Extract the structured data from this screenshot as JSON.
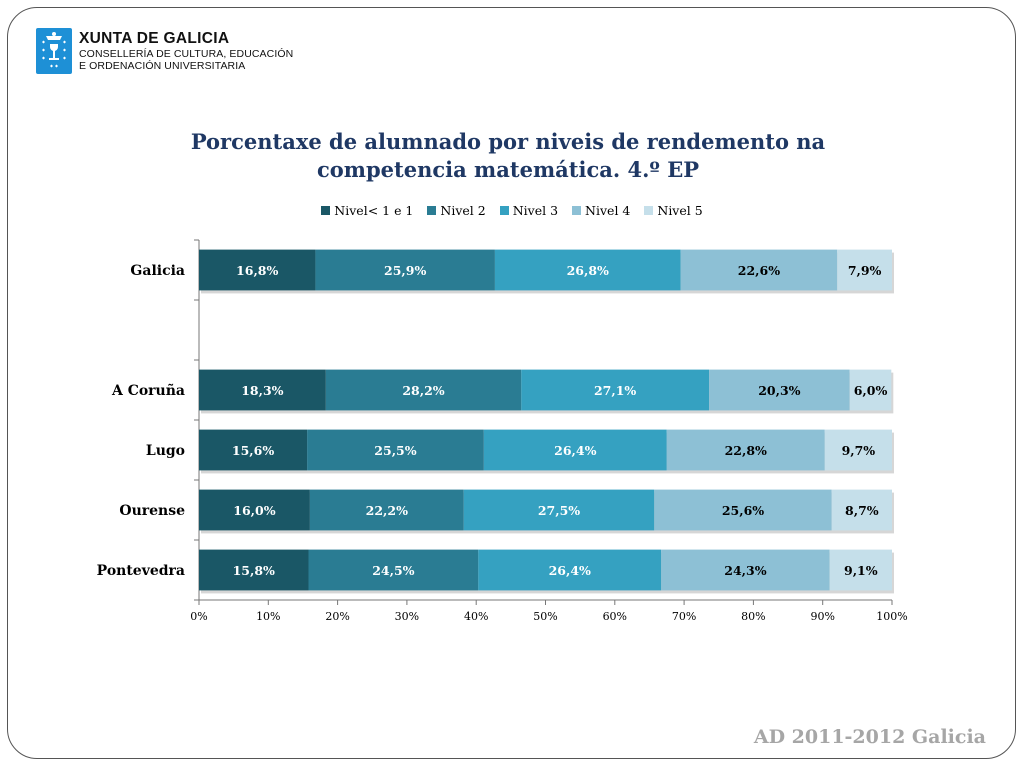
{
  "header": {
    "org_name": "XUNTA DE GALICIA",
    "dept_line1": "CONSELLERÍA DE CULTURA, EDUCACIÓN",
    "dept_line2": "E ORDENACIÓN UNIVERSITARIA",
    "logo_icon": "galicia-coat-of-arms-icon"
  },
  "footer": {
    "text": "AD 2011-2012 Galicia"
  },
  "chart_data": {
    "type": "bar",
    "orientation": "horizontal",
    "stacked": "percent",
    "title": "Porcentaxe de alumnado por niveis de rendemento na competencia matemática. 4.º EP",
    "title_line1": "Porcentaxe de alumnado por niveis de rendemento na",
    "title_line2": "competencia matemática. 4.º EP",
    "xlabel": "",
    "ylabel": "",
    "xlim": [
      0,
      100
    ],
    "x_ticks": [
      "0%",
      "10%",
      "20%",
      "30%",
      "40%",
      "50%",
      "60%",
      "70%",
      "80%",
      "90%",
      "100%"
    ],
    "grid": false,
    "legend_position": "top",
    "categories": [
      "Galicia",
      "",
      "A Coruña",
      "Lugo",
      "Ourense",
      "Pontevedra"
    ],
    "series": [
      {
        "name": "Nivel< 1 e 1",
        "color": "#1a5766",
        "label_color": "#ffffff",
        "values": [
          16.8,
          null,
          18.3,
          15.6,
          16.0,
          15.8
        ],
        "labels": [
          "16,8%",
          "",
          "18,3%",
          "15,6%",
          "16,0%",
          "15,8%"
        ]
      },
      {
        "name": "Nivel 2",
        "color": "#2a7c93",
        "label_color": "#ffffff",
        "values": [
          25.9,
          null,
          28.2,
          25.5,
          22.2,
          24.5
        ],
        "labels": [
          "25,9%",
          "",
          "28,2%",
          "25,5%",
          "22,2%",
          "24,5%"
        ]
      },
      {
        "name": "Nivel 3",
        "color": "#35a1c1",
        "label_color": "#ffffff",
        "values": [
          26.8,
          null,
          27.1,
          26.4,
          27.5,
          26.4
        ],
        "labels": [
          "26,8%",
          "",
          "27,1%",
          "26,4%",
          "27,5%",
          "26,4%"
        ]
      },
      {
        "name": "Nivel 4",
        "color": "#8dc0d5",
        "label_color": "#000000",
        "values": [
          22.6,
          null,
          20.3,
          22.8,
          25.6,
          24.3
        ],
        "labels": [
          "22,6%",
          "",
          "20,3%",
          "22,8%",
          "25,6%",
          "24,3%"
        ]
      },
      {
        "name": "Nivel 5",
        "color": "#c5dfea",
        "label_color": "#000000",
        "values": [
          7.9,
          null,
          6.0,
          9.7,
          8.7,
          9.1
        ],
        "labels": [
          "7,9%",
          "",
          "6,0%",
          "9,7%",
          "8,7%",
          "9,1%"
        ]
      }
    ]
  }
}
